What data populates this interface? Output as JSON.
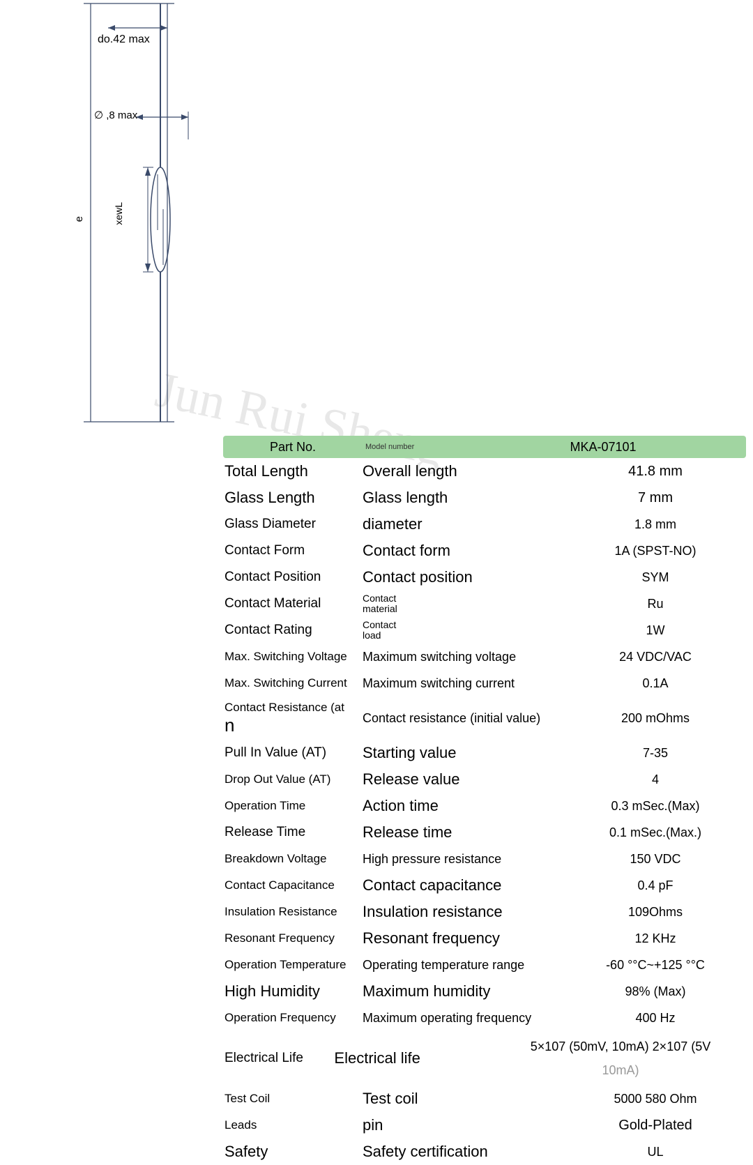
{
  "diagram": {
    "label_top": "do.42 max",
    "label_dia": "∅ ,8 max",
    "label_left_vert": "e",
    "label_inner_vert": "xewL",
    "stroke": "#3a4a6a",
    "stroke_width": 1.2,
    "arrow_stroke": "#3a4a6a"
  },
  "watermark": {
    "text": "Jun Rui Sheng",
    "color": "#e8e8e8",
    "fontsize": 72,
    "rotate_deg": 12
  },
  "table": {
    "header_bg": "#a1d5a1",
    "header": {
      "partno": "Part No.",
      "model": "Model number",
      "value": "MKA-07101"
    },
    "rows": [
      {
        "c1": "Total Length",
        "c1cls": "big",
        "c2": "Overall length",
        "c2cls": "big",
        "c3": "41.8 mm",
        "c3cls": "big"
      },
      {
        "c1": "Glass Length",
        "c1cls": "big",
        "c2": "Glass length",
        "c2cls": "big",
        "c3": "7 mm",
        "c3cls": "big"
      },
      {
        "c1": "Glass Diameter",
        "c1cls": "med",
        "c2": "diameter",
        "c2cls": "big",
        "c3": "1.8 mm",
        "c3cls": ""
      },
      {
        "c1": "Contact Form",
        "c1cls": "med",
        "c2": "Contact form",
        "c2cls": "big",
        "c3": "1A (SPST-NO)",
        "c3cls": ""
      },
      {
        "c1": "Contact Position",
        "c1cls": "med",
        "c2": "Contact position",
        "c2cls": "big",
        "c3": "SYM",
        "c3cls": ""
      },
      {
        "c1": "Contact Material",
        "c1cls": "med",
        "c2": "Contact material",
        "c2cls": "sm",
        "c3": "Ru",
        "c3cls": ""
      },
      {
        "c1": "Contact Rating",
        "c1cls": "med",
        "c2": "Contact load",
        "c2cls": "sm",
        "c3": "1W",
        "c3cls": ""
      },
      {
        "c1": "Max. Switching Voltage",
        "c1cls": "sm",
        "c2": "Maximum switching voltage",
        "c2cls": "med",
        "c3": "24 VDC/VAC",
        "c3cls": ""
      },
      {
        "c1": "Max. Switching Current",
        "c1cls": "sm",
        "c2": "Maximum switching current",
        "c2cls": "med",
        "c3": "0.1A",
        "c3cls": ""
      },
      {
        "c1": "Contact Resistance (at n",
        "c1cls": "sm",
        "c2": "Contact resistance (initial value)",
        "c2cls": "med",
        "c3": "200 mOhms",
        "c3cls": "",
        "tall": true
      },
      {
        "c1": "Pull In Value (AT)",
        "c1cls": "med",
        "c2": "Starting value",
        "c2cls": "big",
        "c3": "7-35",
        "c3cls": ""
      },
      {
        "c1": "Drop Out Value (AT)",
        "c1cls": "sm",
        "c2": "Release value",
        "c2cls": "big",
        "c3": "4",
        "c3cls": ""
      },
      {
        "c1": "Operation Time",
        "c1cls": "sm",
        "c2": "Action time",
        "c2cls": "big",
        "c3": "0.3 mSec.(Max)",
        "c3cls": ""
      },
      {
        "c1": "Release Time",
        "c1cls": "med",
        "c2": "Release time",
        "c2cls": "big",
        "c3": "0.1 mSec.(Max.)",
        "c3cls": ""
      },
      {
        "c1": "Breakdown Voltage",
        "c1cls": "sm",
        "c2": "High pressure resistance",
        "c2cls": "med",
        "c3": "150 VDC",
        "c3cls": ""
      },
      {
        "c1": "Contact Capacitance",
        "c1cls": "sm",
        "c2": "Contact capacitance",
        "c2cls": "big",
        "c3": "0.4 pF",
        "c3cls": ""
      },
      {
        "c1": "Insulation Resistance",
        "c1cls": "sm",
        "c2": "Insulation resistance",
        "c2cls": "big",
        "c3": "109Ohms",
        "c3cls": ""
      },
      {
        "c1": "Resonant Frequency",
        "c1cls": "sm",
        "c2": "Resonant frequency",
        "c2cls": "big",
        "c3": "12 KHz",
        "c3cls": ""
      },
      {
        "c1": "Operation Temperature",
        "c1cls": "sm",
        "c2": "Operating temperature range",
        "c2cls": "med",
        "c3": "-60 °°C~+125 °°C",
        "c3cls": ""
      },
      {
        "c1": "High Humidity",
        "c1cls": "big",
        "c2": "Maximum humidity",
        "c2cls": "big",
        "c3": "98% (Max)",
        "c3cls": ""
      },
      {
        "c1": "Operation Frequency",
        "c1cls": "sm",
        "c2": "Maximum operating frequency",
        "c2cls": "med",
        "c3": "400 Hz",
        "c3cls": ""
      },
      {
        "c1": "Electrical Life",
        "c1cls": "med",
        "c2": "Electrical life",
        "c2cls": "big",
        "c3": "5×107 (50mV, 10mA) 2×107 (5V 10mA)",
        "c3cls": "",
        "elife": true
      },
      {
        "c1": "Test Coil",
        "c1cls": "sm",
        "c2": "Test coil",
        "c2cls": "big",
        "c3": "5000 580 Ohm",
        "c3cls": ""
      },
      {
        "c1": "Leads",
        "c1cls": "sm",
        "c2": "pin",
        "c2cls": "big",
        "c3": "Gold-Plated",
        "c3cls": "big"
      },
      {
        "c1": "Safety",
        "c1cls": "big",
        "c2": "Safety certification",
        "c2cls": "big",
        "c3": "UL",
        "c3cls": ""
      }
    ]
  }
}
